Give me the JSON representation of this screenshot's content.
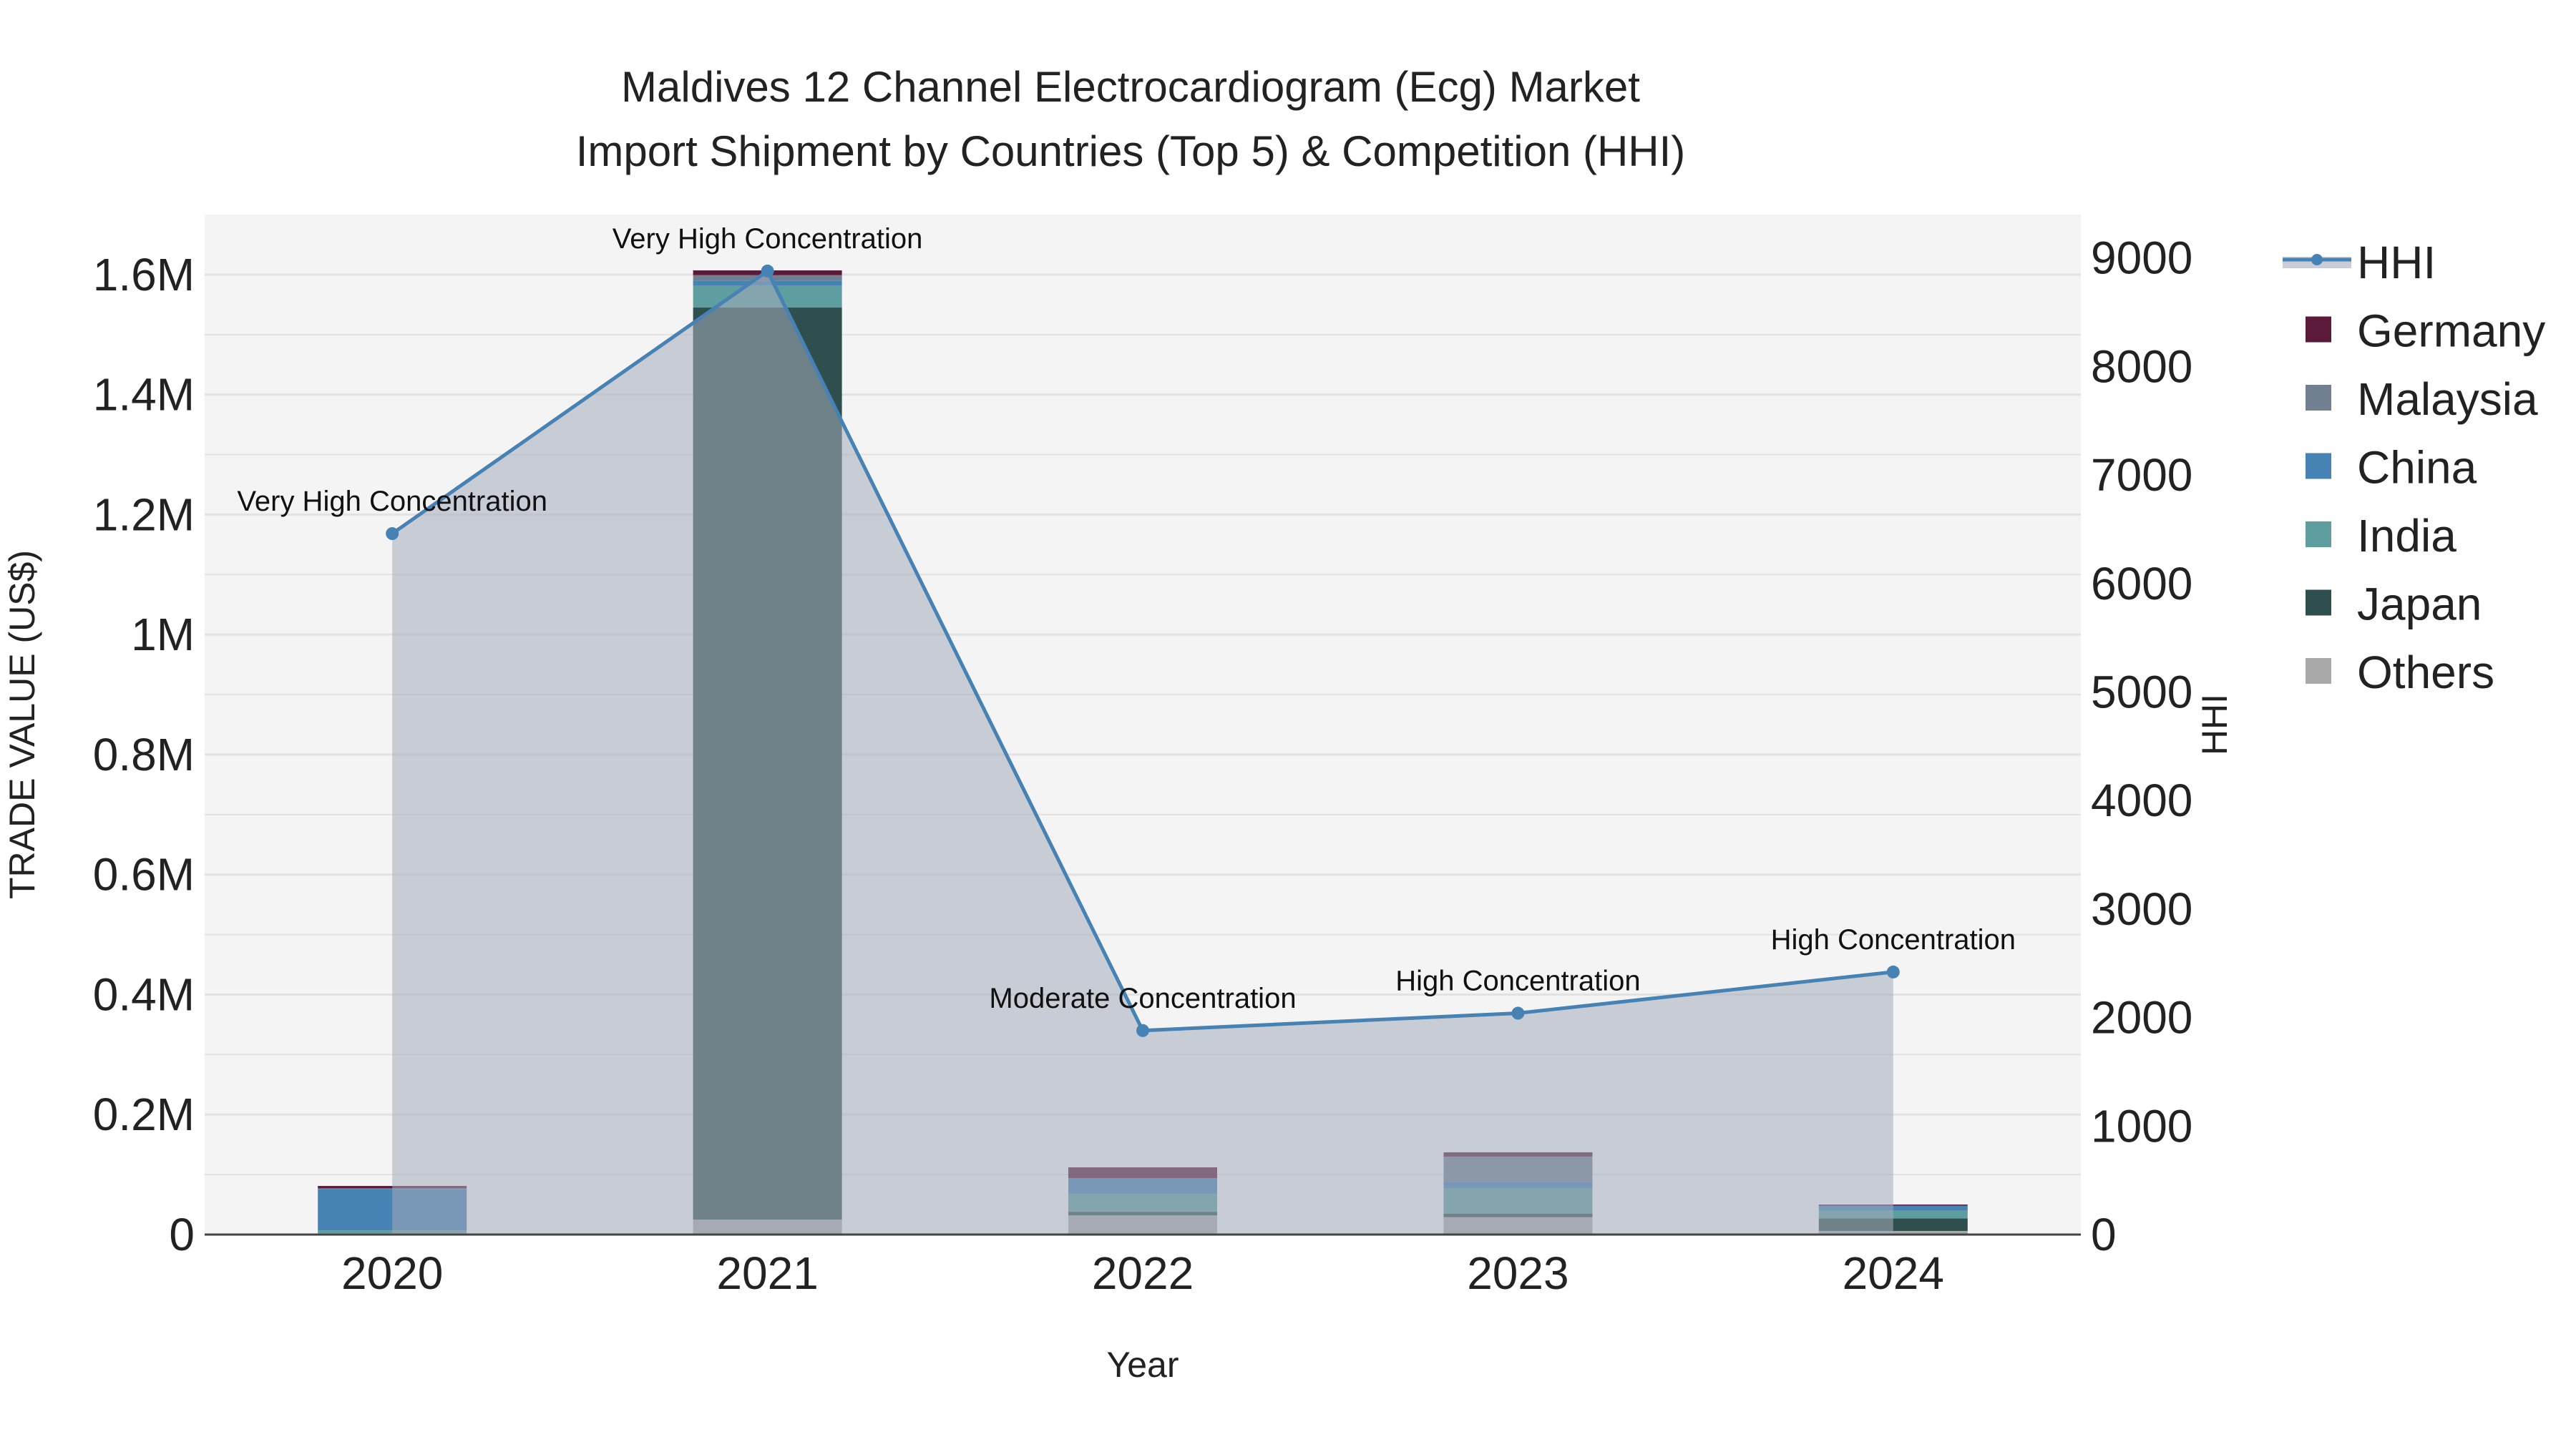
{
  "chart_data": {
    "type": "bar",
    "title": [
      "Maldives 12 Channel Electrocardiogram (Ecg) Market",
      "Import Shipment by Countries (Top 5) & Competition (HHI)"
    ],
    "xlabel": "Year",
    "ylabel": "TRADE VALUE (US$)",
    "y2label": "HHI",
    "categories": [
      "2020",
      "2021",
      "2022",
      "2023",
      "2024"
    ],
    "ylim": [
      0,
      1.7
    ],
    "y_ticks": [
      {
        "v": 0,
        "label": "0"
      },
      {
        "v": 0.2,
        "label": "0.2M"
      },
      {
        "v": 0.4,
        "label": "0.4M"
      },
      {
        "v": 0.6,
        "label": "0.6M"
      },
      {
        "v": 0.8,
        "label": "0.8M"
      },
      {
        "v": 1.0,
        "label": "1M"
      },
      {
        "v": 1.2,
        "label": "1.2M"
      },
      {
        "v": 1.4,
        "label": "1.4M"
      },
      {
        "v": 1.6,
        "label": "1.6M"
      }
    ],
    "y2lim": [
      0,
      9400
    ],
    "y2_ticks": [
      0,
      1000,
      2000,
      3000,
      4000,
      5000,
      6000,
      7000,
      8000,
      9000
    ],
    "units": "million US$",
    "series": [
      {
        "name": "Others",
        "color": "#a9a9a9",
        "values": [
          0.002,
          0.025,
          0.032,
          0.029,
          0.006
        ]
      },
      {
        "name": "Japan",
        "color": "#2f4f4f",
        "values": [
          0.0,
          1.52,
          0.006,
          0.006,
          0.021
        ]
      },
      {
        "name": "India",
        "color": "#5f9ea0",
        "values": [
          0.005,
          0.037,
          0.03,
          0.042,
          0.013
        ]
      },
      {
        "name": "China",
        "color": "#4682b4",
        "values": [
          0.069,
          0.008,
          0.026,
          0.011,
          0.008
        ]
      },
      {
        "name": "Malaysia",
        "color": "#708090",
        "values": [
          0.001,
          0.009,
          0.0,
          0.042,
          0.0
        ]
      },
      {
        "name": "Germany",
        "color": "#5c1a3a",
        "values": [
          0.004,
          0.008,
          0.018,
          0.007,
          0.002
        ]
      }
    ],
    "hhi": {
      "name": "HHI",
      "color": "#4682b4",
      "values": [
        6460,
        8880,
        1880,
        2040,
        2420
      ]
    },
    "annotations": [
      "Very High Concentration",
      "Very High Concentration",
      "Moderate Concentration",
      "High Concentration",
      "High Concentration"
    ],
    "legend": [
      "HHI",
      "Germany",
      "Malaysia",
      "China",
      "India",
      "Japan",
      "Others"
    ],
    "legend_position": "right",
    "grid": true
  }
}
